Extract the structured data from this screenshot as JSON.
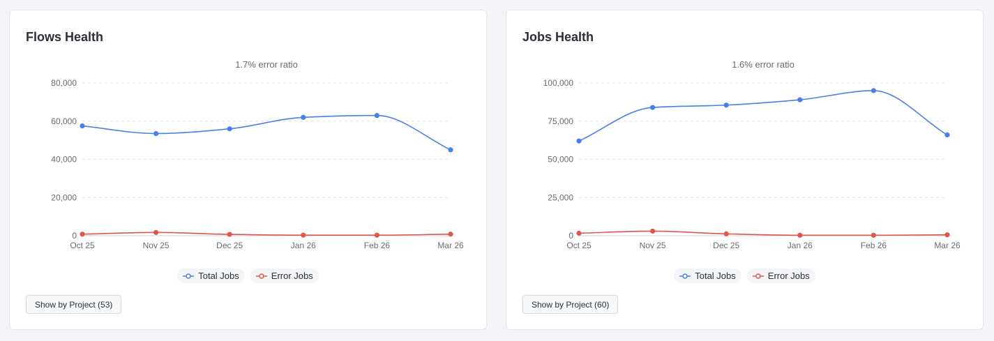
{
  "colors": {
    "total": "#4a7fe8",
    "error": "#e0564c",
    "grid": "#e3e5ea",
    "axis_text": "#666b75"
  },
  "chart_data": [
    {
      "type": "line",
      "title": "Flows Health",
      "subtitle": "1.7% error ratio",
      "categories": [
        "Oct 25",
        "Nov 25",
        "Dec 25",
        "Jan 26",
        "Feb 26",
        "Mar 26"
      ],
      "ylim": [
        0,
        80000
      ],
      "yticks": [
        0,
        20000,
        40000,
        60000,
        80000
      ],
      "ytick_labels": [
        "0",
        "20,000",
        "40,000",
        "60,000",
        "80,000"
      ],
      "grid": true,
      "legend": "bottom-center",
      "series": [
        {
          "name": "Total Jobs",
          "values": [
            57500,
            53500,
            56000,
            62000,
            63000,
            45000
          ]
        },
        {
          "name": "Error Jobs",
          "values": [
            800,
            1700,
            700,
            300,
            300,
            800
          ]
        }
      ],
      "button_label": "Show by Project (53)"
    },
    {
      "type": "line",
      "title": "Jobs Health",
      "subtitle": "1.6% error ratio",
      "categories": [
        "Oct 25",
        "Nov 25",
        "Dec 25",
        "Jan 26",
        "Feb 26",
        "Mar 26"
      ],
      "ylim": [
        0,
        100000
      ],
      "yticks": [
        0,
        25000,
        50000,
        75000,
        100000
      ],
      "ytick_labels": [
        "0",
        "25,000",
        "50,000",
        "75,000",
        "100,000"
      ],
      "grid": true,
      "legend": "bottom-center",
      "series": [
        {
          "name": "Total Jobs",
          "values": [
            62000,
            84000,
            85500,
            89000,
            95000,
            66000
          ]
        },
        {
          "name": "Error Jobs",
          "values": [
            1600,
            3000,
            1200,
            300,
            300,
            600
          ]
        }
      ],
      "button_label": "Show by Project (60)"
    }
  ]
}
